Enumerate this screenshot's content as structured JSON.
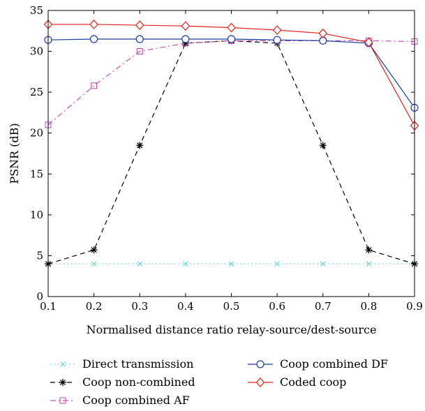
{
  "chart_data": {
    "type": "line",
    "xlabel": "Normalised distance ratio relay-source/dest-source",
    "ylabel": "PSNR (dB)",
    "xlim": [
      0.1,
      0.9
    ],
    "ylim": [
      0,
      35
    ],
    "xticks": [
      "0.1",
      "0.2",
      "0.3",
      "0.4",
      "0.5",
      "0.6",
      "0.7",
      "0.8",
      "0.9"
    ],
    "yticks": [
      "0",
      "5",
      "10",
      "15",
      "20",
      "25",
      "30",
      "35"
    ],
    "grid": false,
    "legend_position": "bottom",
    "x": [
      0.1,
      0.2,
      0.3,
      0.4,
      0.5,
      0.6,
      0.7,
      0.8,
      0.9
    ],
    "series": [
      {
        "name": "Direct transmission",
        "color": "#5ecfdc",
        "marker": "x",
        "dash": "dotted",
        "values": [
          4.0,
          4.0,
          4.0,
          4.0,
          4.0,
          4.0,
          4.0,
          4.0,
          4.0
        ]
      },
      {
        "name": "Coop non-combined",
        "color": "#000000",
        "marker": "star",
        "dash": "dashed",
        "values": [
          4.0,
          5.7,
          18.5,
          31.0,
          31.3,
          31.0,
          18.5,
          5.7,
          4.0
        ]
      },
      {
        "name": "Coop combined AF",
        "color": "#c050b8",
        "marker": "square",
        "dash": "dashdot",
        "values": [
          21.0,
          25.8,
          30.0,
          31.0,
          31.3,
          31.3,
          31.3,
          31.3,
          31.2
        ]
      },
      {
        "name": "Coop combined DF",
        "color": "#1a3ea0",
        "marker": "circle",
        "dash": "solid",
        "values": [
          31.4,
          31.5,
          31.5,
          31.5,
          31.5,
          31.4,
          31.3,
          31.0,
          23.1
        ]
      },
      {
        "name": "Coded coop",
        "color": "#e0201a",
        "marker": "diamond",
        "dash": "solid",
        "values": [
          33.3,
          33.3,
          33.2,
          33.1,
          32.9,
          32.6,
          32.2,
          31.1,
          20.9
        ]
      }
    ]
  }
}
